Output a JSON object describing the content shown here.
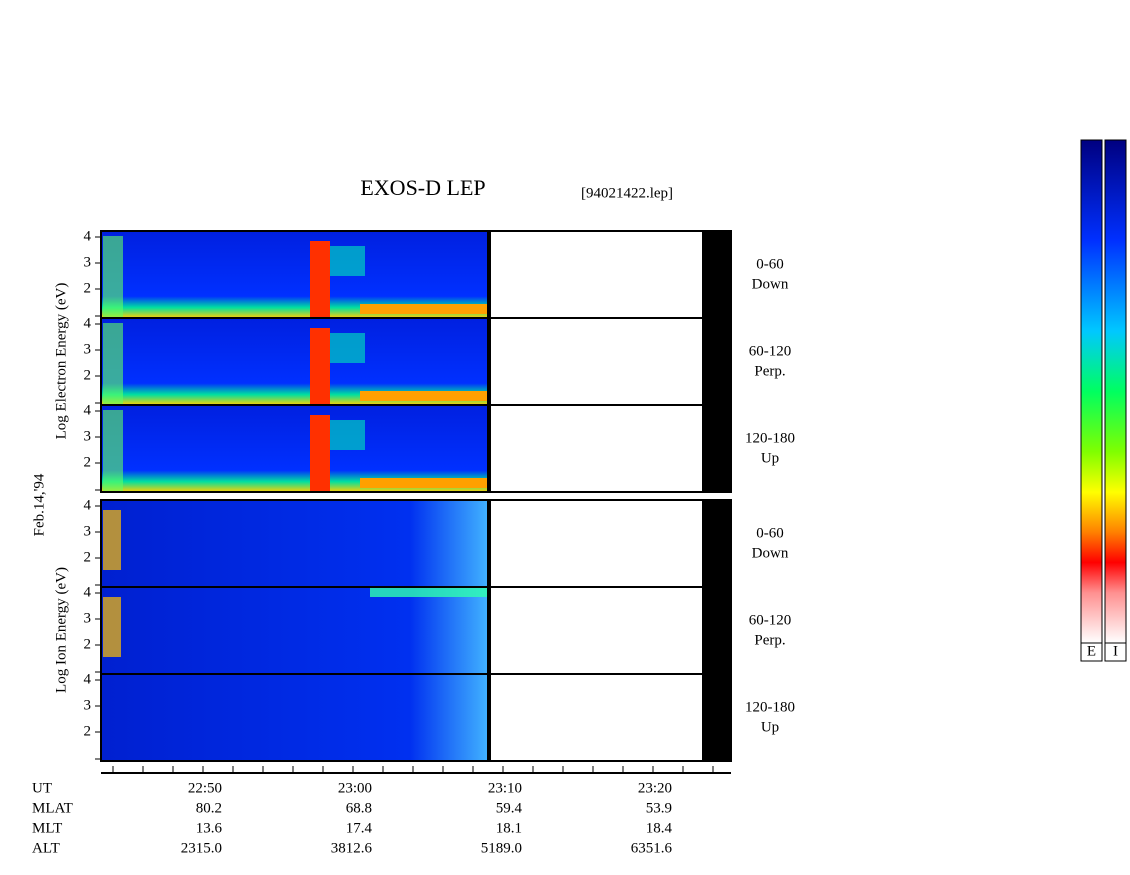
{
  "header": {
    "title": "EXOS-D LEP",
    "file": "[94021422.lep]"
  },
  "date": "Feb.14,'94",
  "energy_ticks": [
    4,
    3,
    2
  ],
  "panels": [
    {
      "axis_label": "Log  Electron  Energy (eV)",
      "channels": [
        [
          "0-60",
          "Down"
        ],
        [
          "60-120",
          "Perp."
        ],
        [
          "120-180",
          "Up"
        ]
      ]
    },
    {
      "axis_label": "Log  Ion  Energy (eV)",
      "channels": [
        [
          "0-60",
          "Down"
        ],
        [
          "60-120",
          "Perp."
        ],
        [
          "120-180",
          "Up"
        ]
      ]
    }
  ],
  "ephemeris": [
    {
      "label": "UT",
      "values": [
        "22:50",
        "23:00",
        "23:10",
        "23:20"
      ]
    },
    {
      "label": "MLAT",
      "values": [
        "80.2",
        "68.8",
        "59.4",
        "53.9"
      ]
    },
    {
      "label": "MLT",
      "values": [
        "13.6",
        "17.4",
        "18.1",
        "18.4"
      ]
    },
    {
      "label": "ALT",
      "values": [
        "2315.0",
        "3812.6",
        "5189.0",
        "6351.6"
      ]
    }
  ],
  "colorbars": [
    "E",
    "I"
  ]
}
